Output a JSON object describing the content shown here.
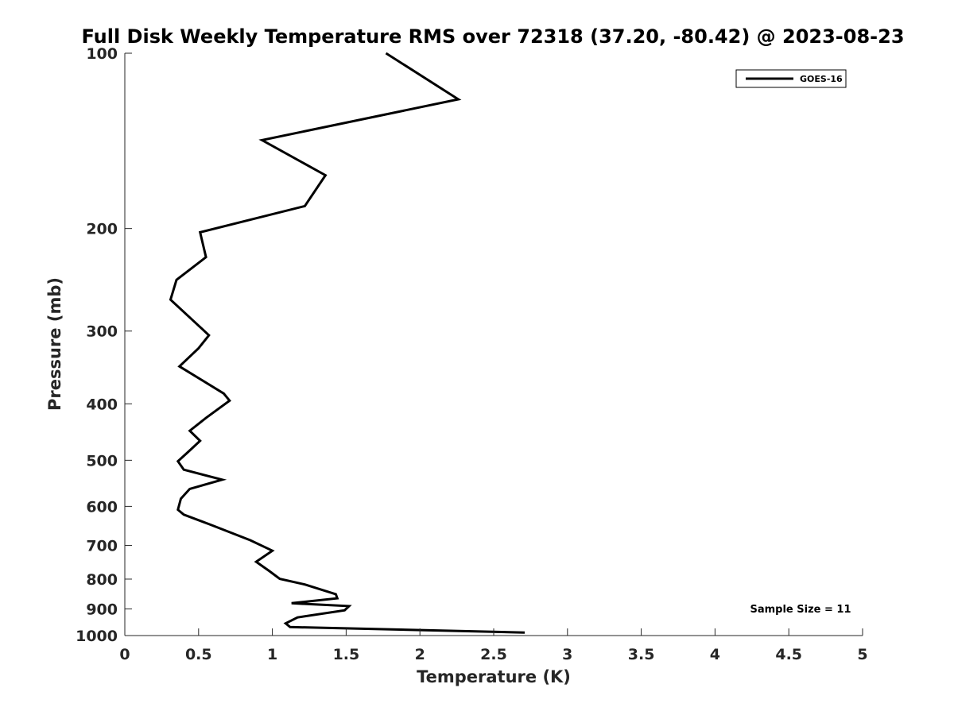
{
  "chart_data": {
    "type": "line",
    "title": "Full Disk Weekly Temperature RMS over 72318 (37.20, -80.42) @ 2023-08-23",
    "xlabel": "Temperature (K)",
    "ylabel": "Pressure (mb)",
    "xlim": [
      0,
      5
    ],
    "ylim": [
      100,
      1000
    ],
    "y_scale": "log",
    "y_reversed": true,
    "grid": false,
    "legend_position": "top-right",
    "x_ticks": [
      "0",
      "0.5",
      "1",
      "1.5",
      "2",
      "2.5",
      "3",
      "3.5",
      "4",
      "4.5",
      "5"
    ],
    "y_ticks": [
      "100",
      "200",
      "300",
      "400",
      "500",
      "600",
      "700",
      "800",
      "900",
      "1000"
    ],
    "annotation": "Sample Size = 11",
    "series": [
      {
        "name": "GOES-16",
        "color": "#000000",
        "points": [
          [
            1.77,
            100
          ],
          [
            2.26,
            120
          ],
          [
            0.93,
            141
          ],
          [
            1.36,
            162
          ],
          [
            1.22,
            183
          ],
          [
            0.51,
            203
          ],
          [
            0.55,
            224
          ],
          [
            0.35,
            245
          ],
          [
            0.31,
            265
          ],
          [
            0.57,
            305
          ],
          [
            0.5,
            321
          ],
          [
            0.37,
            345
          ],
          [
            0.67,
            384
          ],
          [
            0.71,
            395
          ],
          [
            0.55,
            423
          ],
          [
            0.44,
            445
          ],
          [
            0.51,
            463
          ],
          [
            0.44,
            481
          ],
          [
            0.36,
            502
          ],
          [
            0.4,
            519
          ],
          [
            0.66,
            540
          ],
          [
            0.44,
            560
          ],
          [
            0.38,
            582
          ],
          [
            0.36,
            608
          ],
          [
            0.4,
            620
          ],
          [
            0.58,
            645
          ],
          [
            0.85,
            686
          ],
          [
            1.0,
            715
          ],
          [
            0.89,
            747
          ],
          [
            0.98,
            775
          ],
          [
            1.05,
            799
          ],
          [
            1.22,
            817
          ],
          [
            1.43,
            849
          ],
          [
            1.44,
            863
          ],
          [
            1.13,
            880
          ],
          [
            1.52,
            890
          ],
          [
            1.49,
            905
          ],
          [
            1.17,
            931
          ],
          [
            1.09,
            953
          ],
          [
            1.12,
            967
          ],
          [
            2.71,
            988
          ]
        ]
      }
    ]
  }
}
